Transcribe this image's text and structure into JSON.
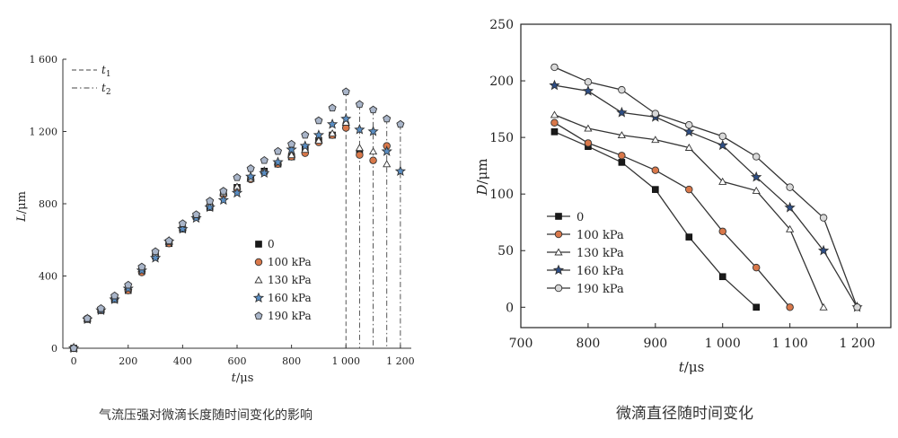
{
  "chart_data": [
    {
      "type": "scatter",
      "title": "",
      "caption": "气流压强对微滴长度随时间变化的影响",
      "xlabel_var": "t",
      "xlabel_unit": "μs",
      "ylabel_var": "L",
      "ylabel_unit": "μm",
      "xlim": [
        -40,
        1240
      ],
      "ylim": [
        0,
        1600
      ],
      "xticks": [
        0,
        200,
        400,
        600,
        800,
        1000,
        1200
      ],
      "xtick_labels": [
        "0",
        "200",
        "400",
        "600",
        "800",
        "1 000",
        "1 200"
      ],
      "yticks": [
        0,
        400,
        800,
        1200,
        1600
      ],
      "ytick_labels": [
        "0",
        "400",
        "800",
        "1 200",
        "1 600"
      ],
      "line_legend": [
        {
          "var": "t",
          "sub": "1",
          "style": "dashed"
        },
        {
          "var": "t",
          "sub": "2",
          "style": "dashdot"
        }
      ],
      "vlines": [
        {
          "x": 1000,
          "y": 1420,
          "style": "dashed"
        },
        {
          "x": 1050,
          "y": 1350,
          "style": "dashdot"
        },
        {
          "x": 1100,
          "y": 1320,
          "style": "dashdot"
        },
        {
          "x": 1150,
          "y": 1270,
          "style": "dashdot"
        },
        {
          "x": 1200,
          "y": 1240,
          "style": "dashdot"
        }
      ],
      "series": [
        {
          "name": "0",
          "marker": "square",
          "color": "#1a1a1a",
          "x": [
            0,
            50,
            100,
            150,
            200,
            250,
            300,
            350,
            400,
            450,
            500,
            550,
            600,
            650,
            700,
            750,
            800,
            850,
            900,
            950,
            1000,
            1050
          ],
          "y": [
            0,
            160,
            210,
            270,
            320,
            430,
            510,
            580,
            660,
            730,
            780,
            860,
            890,
            940,
            980,
            1020,
            1060,
            1100,
            1150,
            1180,
            1230,
            1080
          ]
        },
        {
          "name": "100 kPa",
          "marker": "circle",
          "color": "#d9784a",
          "x": [
            0,
            50,
            100,
            150,
            200,
            250,
            300,
            350,
            400,
            450,
            500,
            550,
            600,
            650,
            700,
            750,
            800,
            850,
            900,
            950,
            1000,
            1050,
            1100,
            1150
          ],
          "y": [
            0,
            165,
            210,
            275,
            320,
            420,
            510,
            580,
            665,
            730,
            790,
            850,
            885,
            935,
            975,
            1020,
            1060,
            1080,
            1140,
            1180,
            1220,
            1070,
            1040,
            1120
          ]
        },
        {
          "name": "130 kPa",
          "marker": "triangle",
          "color": "#ffffff",
          "x": [
            0,
            50,
            100,
            150,
            200,
            250,
            300,
            350,
            400,
            450,
            500,
            550,
            600,
            650,
            700,
            750,
            800,
            850,
            900,
            950,
            1000,
            1050,
            1100,
            1150
          ],
          "y": [
            0,
            165,
            215,
            285,
            340,
            440,
            520,
            590,
            670,
            735,
            800,
            860,
            895,
            940,
            985,
            1030,
            1070,
            1100,
            1150,
            1190,
            1250,
            1110,
            1090,
            1020
          ]
        },
        {
          "name": "160 kPa",
          "marker": "star",
          "color": "#5a8ec4",
          "x": [
            0,
            50,
            100,
            150,
            200,
            250,
            300,
            350,
            400,
            450,
            500,
            550,
            600,
            650,
            700,
            750,
            800,
            850,
            900,
            950,
            1000,
            1050,
            1100,
            1150,
            1200
          ],
          "y": [
            0,
            160,
            210,
            270,
            330,
            430,
            500,
            590,
            660,
            720,
            780,
            820,
            860,
            950,
            970,
            1030,
            1100,
            1120,
            1180,
            1240,
            1270,
            1210,
            1200,
            1090,
            980
          ]
        },
        {
          "name": "190 kPa",
          "marker": "pentagon",
          "color": "#a9b5c9",
          "x": [
            0,
            50,
            100,
            150,
            200,
            250,
            300,
            350,
            400,
            450,
            500,
            550,
            600,
            650,
            700,
            750,
            800,
            850,
            900,
            950,
            1000,
            1050,
            1100,
            1150,
            1200
          ],
          "y": [
            0,
            165,
            220,
            290,
            350,
            450,
            535,
            595,
            690,
            740,
            815,
            870,
            945,
            995,
            1040,
            1090,
            1130,
            1180,
            1260,
            1330,
            1420,
            1350,
            1320,
            1270,
            1240
          ]
        }
      ]
    },
    {
      "type": "line",
      "title": "",
      "caption": "微滴直径随时间变化",
      "xlabel_var": "t",
      "xlabel_unit": "μs",
      "ylabel_var": "D",
      "ylabel_unit": "μm",
      "xlim": [
        700,
        1250
      ],
      "ylim": [
        -18,
        250
      ],
      "xticks": [
        700,
        800,
        900,
        1000,
        1100,
        1200
      ],
      "xtick_labels": [
        "700",
        "800",
        "900",
        "1 000",
        "1 100",
        "1 200"
      ],
      "yticks": [
        0,
        50,
        100,
        150,
        200,
        250
      ],
      "ytick_labels": [
        "0",
        "50",
        "100",
        "150",
        "200",
        "250"
      ],
      "series": [
        {
          "name": "0",
          "marker": "square",
          "color": "#1a1a1a",
          "x": [
            750,
            800,
            850,
            900,
            950,
            1000,
            1050
          ],
          "y": [
            155,
            142,
            128,
            104,
            62,
            27,
            0
          ]
        },
        {
          "name": "100 kPa",
          "marker": "circle",
          "color": "#d9784a",
          "x": [
            750,
            800,
            850,
            900,
            950,
            1000,
            1050,
            1100
          ],
          "y": [
            163,
            145,
            134,
            121,
            104,
            67,
            35,
            0
          ]
        },
        {
          "name": "130 kPa",
          "marker": "triangle",
          "color": "#ffffff",
          "x": [
            750,
            800,
            850,
            900,
            950,
            1000,
            1050,
            1100,
            1150
          ],
          "y": [
            170,
            158,
            152,
            148,
            141,
            111,
            103,
            69,
            0
          ]
        },
        {
          "name": "160 kPa",
          "marker": "star",
          "color": "#2d4e86",
          "x": [
            750,
            800,
            850,
            900,
            950,
            1000,
            1050,
            1100,
            1150,
            1200
          ],
          "y": [
            196,
            191,
            172,
            168,
            155,
            143,
            115,
            88,
            50,
            0
          ]
        },
        {
          "name": "190 kPa",
          "marker": "circle",
          "color": "#d9d9d9",
          "x": [
            750,
            800,
            850,
            900,
            950,
            1000,
            1050,
            1100,
            1150,
            1200
          ],
          "y": [
            212,
            199,
            192,
            171,
            161,
            151,
            133,
            106,
            79,
            0
          ]
        }
      ]
    }
  ]
}
